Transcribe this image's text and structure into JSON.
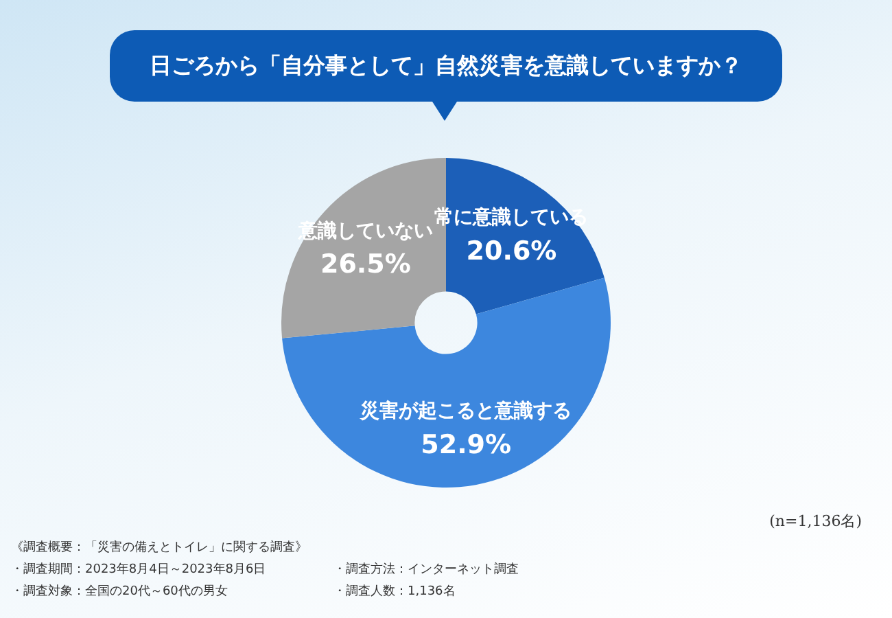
{
  "chart_data": {
    "type": "donut",
    "title": "日ごろから「自分事として」自然災害を意識していますか？",
    "categories": [
      "常に意識している",
      "災害が起こると意識する",
      "意識していない"
    ],
    "values": [
      20.6,
      52.9,
      26.5
    ],
    "value_labels": [
      "20.6%",
      "52.9%",
      "26.5%"
    ],
    "colors": [
      "#1c5fb8",
      "#3d87de",
      "#a5a5a5"
    ],
    "annotations": [
      "(n=1,136名)",
      "《調査概要：「災害の備えとトイレ」に関する調査》",
      "・調査期間：2023年8月4日～2023年8月6日",
      "・調査方法：インターネット調査",
      "・調査対象：全国の20代～60代の男女",
      "・調査人数：1,136名"
    ],
    "legend": false
  }
}
